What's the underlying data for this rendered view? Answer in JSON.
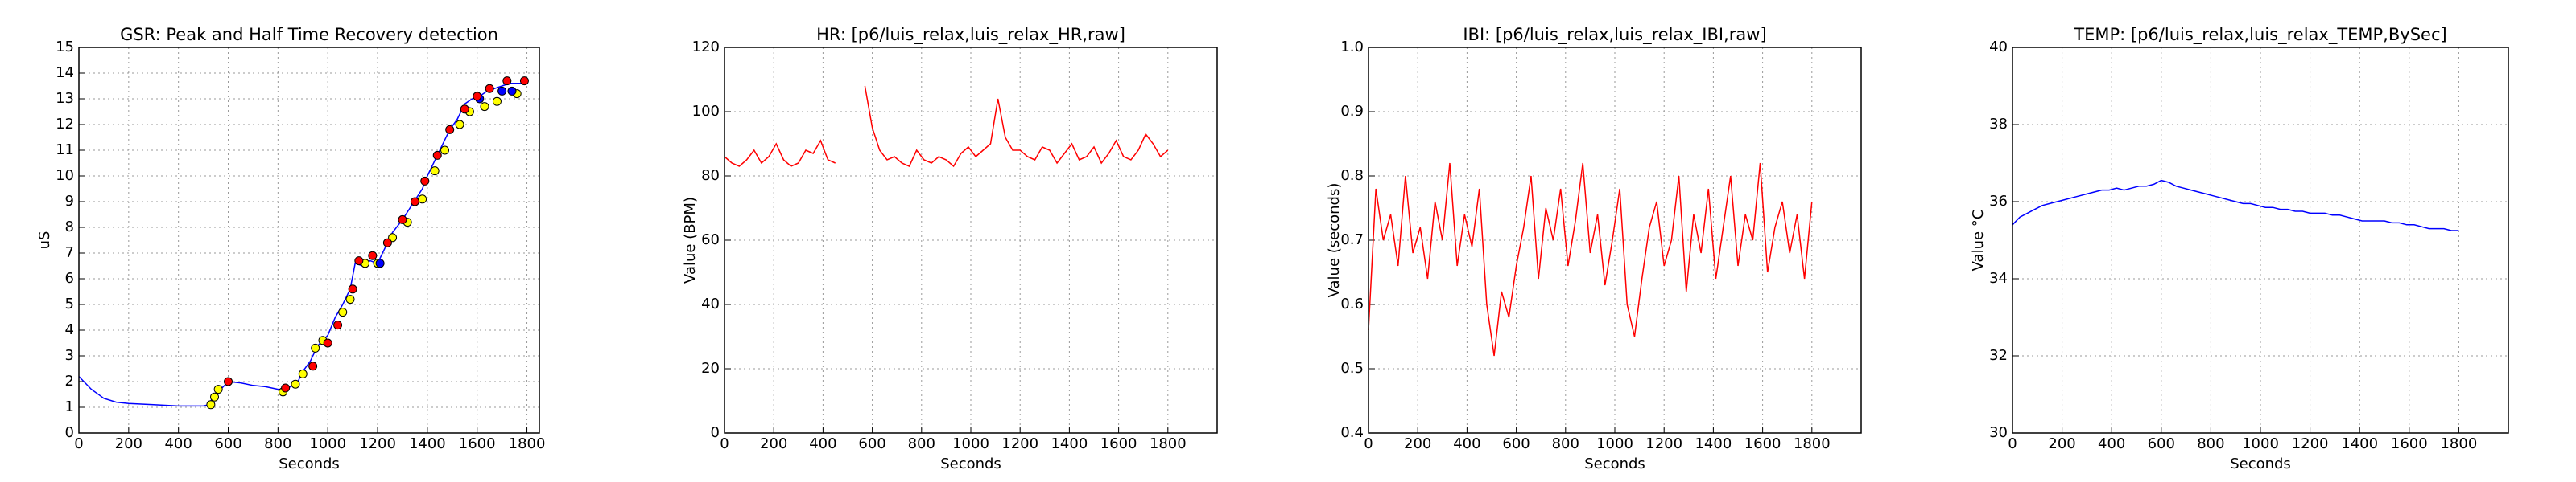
{
  "chart_data": [
    {
      "type": "line",
      "title": "GSR: Peak and Half Time Recovery detection",
      "xlabel": "Seconds",
      "ylabel": "uS",
      "xlim": [
        0,
        1850
      ],
      "ylim": [
        0,
        15
      ],
      "grid": true,
      "xticks": [
        0,
        200,
        400,
        600,
        800,
        1000,
        1200,
        1400,
        1600,
        1800
      ],
      "yticks": [
        0,
        1,
        2,
        3,
        4,
        5,
        6,
        7,
        8,
        9,
        10,
        11,
        12,
        13,
        14,
        15
      ],
      "series": [
        {
          "mode": "line",
          "color": "#0000ff",
          "x": [
            0,
            50,
            100,
            150,
            200,
            300,
            400,
            500,
            520,
            540,
            570,
            600,
            650,
            700,
            750,
            800,
            820,
            850,
            880,
            900,
            930,
            960,
            1000,
            1030,
            1060,
            1090,
            1110,
            1140,
            1170,
            1200,
            1230,
            1260,
            1300,
            1340,
            1380,
            1400,
            1430,
            1460,
            1490,
            1520,
            1550,
            1580,
            1610,
            1640,
            1670,
            1700,
            1730,
            1790
          ],
          "values": [
            2.2,
            1.7,
            1.35,
            1.2,
            1.15,
            1.1,
            1.05,
            1.05,
            1.1,
            1.4,
            1.7,
            2.0,
            1.95,
            1.85,
            1.8,
            1.7,
            1.7,
            1.8,
            2.0,
            2.4,
            2.8,
            3.4,
            3.8,
            4.5,
            5.0,
            5.6,
            6.6,
            6.5,
            6.7,
            6.6,
            7.2,
            7.8,
            8.3,
            8.9,
            9.5,
            10.0,
            10.6,
            11.2,
            11.8,
            12.2,
            12.8,
            13.0,
            13.1,
            13.3,
            13.4,
            13.5,
            13.6,
            13.6
          ]
        },
        {
          "mode": "marker",
          "color": "#ffff00",
          "x": [
            530,
            545,
            560,
            820,
            870,
            900,
            950,
            980,
            1060,
            1090,
            1150,
            1200,
            1260,
            1320,
            1380,
            1430,
            1470,
            1530,
            1570,
            1630,
            1680,
            1760
          ],
          "values": [
            1.1,
            1.4,
            1.7,
            1.6,
            1.9,
            2.3,
            3.3,
            3.6,
            4.7,
            5.2,
            6.6,
            6.6,
            7.6,
            8.2,
            9.1,
            10.2,
            11.0,
            12.0,
            12.5,
            12.7,
            12.9,
            13.2
          ]
        },
        {
          "mode": "marker",
          "color": "#0000ff",
          "x": [
            1210,
            1610,
            1700,
            1740
          ],
          "values": [
            6.6,
            13.0,
            13.3,
            13.3
          ]
        },
        {
          "mode": "marker",
          "color": "#ff0000",
          "x": [
            600,
            830,
            940,
            1000,
            1040,
            1100,
            1125,
            1180,
            1240,
            1300,
            1350,
            1390,
            1440,
            1490,
            1550,
            1600,
            1650,
            1720,
            1790
          ],
          "values": [
            2.0,
            1.75,
            2.6,
            3.5,
            4.2,
            5.6,
            6.7,
            6.9,
            7.4,
            8.3,
            9.0,
            9.8,
            10.8,
            11.8,
            12.6,
            13.1,
            13.4,
            13.7,
            13.7
          ]
        }
      ]
    },
    {
      "type": "line",
      "title": "HR: [p6/luis_relax,luis_relax_HR,raw]",
      "xlabel": "Seconds",
      "ylabel": "Value (BPM)",
      "xlim": [
        0,
        2000
      ],
      "ylim": [
        0,
        120
      ],
      "grid": true,
      "xticks": [
        0,
        200,
        400,
        600,
        800,
        1000,
        1200,
        1400,
        1600,
        1800
      ],
      "yticks": [
        0,
        20,
        40,
        60,
        80,
        100,
        120
      ],
      "series": [
        {
          "mode": "line",
          "color": "#ff0000",
          "x": [
            0,
            30,
            60,
            90,
            120,
            150,
            180,
            210,
            240,
            270,
            300,
            330,
            360,
            390,
            420,
            450,
            480,
            510,
            540,
            570,
            600,
            630,
            660,
            690,
            720,
            750,
            780,
            810,
            840,
            870,
            900,
            930,
            960,
            990,
            1020,
            1050,
            1080,
            1110,
            1140,
            1170,
            1200,
            1230,
            1260,
            1290,
            1320,
            1350,
            1380,
            1410,
            1440,
            1470,
            1500,
            1530,
            1560,
            1590,
            1620,
            1650,
            1680,
            1710,
            1740,
            1770,
            1800
          ],
          "values": [
            86,
            84,
            83,
            85,
            88,
            84,
            86,
            90,
            85,
            83,
            84,
            88,
            87,
            91,
            85,
            84,
            null,
            null,
            null,
            108,
            95,
            88,
            85,
            86,
            84,
            83,
            88,
            85,
            84,
            86,
            85,
            83,
            87,
            89,
            86,
            88,
            90,
            104,
            92,
            88,
            88,
            86,
            85,
            89,
            88,
            84,
            87,
            90,
            85,
            86,
            89,
            84,
            87,
            91,
            86,
            85,
            88,
            93,
            90,
            86,
            88
          ]
        }
      ]
    },
    {
      "type": "line",
      "title": "IBI: [p6/luis_relax,luis_relax_IBI,raw]",
      "xlabel": "Seconds",
      "ylabel": "Value (seconds)",
      "xlim": [
        0,
        2000
      ],
      "ylim": [
        0.4,
        1.0
      ],
      "grid": true,
      "xticks": [
        0,
        200,
        400,
        600,
        800,
        1000,
        1200,
        1400,
        1600,
        1800
      ],
      "yticks": [
        0.4,
        0.5,
        0.6,
        0.7,
        0.8,
        0.9,
        {
          "value": 1,
          "label": "1.0"
        }
      ],
      "series": [
        {
          "mode": "line",
          "color": "#ff0000",
          "x": [
            0,
            30,
            60,
            90,
            120,
            150,
            180,
            210,
            240,
            270,
            300,
            330,
            360,
            390,
            420,
            450,
            480,
            510,
            540,
            570,
            600,
            630,
            660,
            690,
            720,
            750,
            780,
            810,
            840,
            870,
            900,
            930,
            960,
            990,
            1020,
            1050,
            1080,
            1110,
            1140,
            1170,
            1200,
            1230,
            1260,
            1290,
            1320,
            1350,
            1380,
            1410,
            1440,
            1470,
            1500,
            1530,
            1560,
            1590,
            1620,
            1650,
            1680,
            1710,
            1740,
            1770,
            1800
          ],
          "values": [
            0.56,
            0.78,
            0.7,
            0.74,
            0.66,
            0.8,
            0.68,
            0.72,
            0.64,
            0.76,
            0.7,
            0.82,
            0.66,
            0.74,
            0.69,
            0.78,
            0.6,
            0.52,
            0.62,
            0.58,
            0.66,
            0.72,
            0.8,
            0.64,
            0.75,
            0.7,
            0.78,
            0.66,
            0.73,
            0.82,
            0.68,
            0.74,
            0.63,
            0.7,
            0.78,
            0.6,
            0.55,
            0.64,
            0.72,
            0.76,
            0.66,
            0.7,
            0.8,
            0.62,
            0.74,
            0.68,
            0.78,
            0.64,
            0.72,
            0.8,
            0.66,
            0.74,
            0.7,
            0.82,
            0.65,
            0.72,
            0.76,
            0.68,
            0.74,
            0.64,
            0.76
          ]
        }
      ]
    },
    {
      "type": "line",
      "title": "TEMP: [p6/luis_relax,luis_relax_TEMP,BySec]",
      "xlabel": "Seconds",
      "ylabel": "Value °C",
      "xlim": [
        0,
        2000
      ],
      "ylim": [
        30,
        40
      ],
      "grid": true,
      "xticks": [
        0,
        200,
        400,
        600,
        800,
        1000,
        1200,
        1400,
        1600,
        1800
      ],
      "yticks": [
        30,
        32,
        34,
        36,
        38,
        40
      ],
      "series": [
        {
          "mode": "line",
          "color": "#0000ff",
          "x": [
            0,
            30,
            60,
            90,
            120,
            150,
            180,
            210,
            240,
            270,
            300,
            330,
            360,
            390,
            420,
            450,
            480,
            510,
            540,
            570,
            600,
            630,
            660,
            690,
            720,
            750,
            780,
            810,
            840,
            870,
            900,
            930,
            960,
            990,
            1020,
            1050,
            1080,
            1110,
            1140,
            1170,
            1200,
            1230,
            1260,
            1290,
            1320,
            1350,
            1380,
            1410,
            1440,
            1470,
            1500,
            1530,
            1560,
            1590,
            1620,
            1650,
            1680,
            1710,
            1740,
            1770,
            1800
          ],
          "values": [
            35.4,
            35.6,
            35.7,
            35.8,
            35.9,
            35.95,
            36.0,
            36.05,
            36.1,
            36.15,
            36.2,
            36.25,
            36.3,
            36.3,
            36.35,
            36.3,
            36.35,
            36.4,
            36.4,
            36.45,
            36.55,
            36.5,
            36.4,
            36.35,
            36.3,
            36.25,
            36.2,
            36.15,
            36.1,
            36.05,
            36.0,
            35.95,
            35.95,
            35.9,
            35.85,
            35.85,
            35.8,
            35.8,
            35.75,
            35.75,
            35.7,
            35.7,
            35.7,
            35.65,
            35.65,
            35.6,
            35.55,
            35.5,
            35.5,
            35.5,
            35.5,
            35.45,
            35.45,
            35.4,
            35.4,
            35.35,
            35.3,
            35.3,
            35.3,
            35.25,
            35.25
          ]
        }
      ]
    }
  ]
}
